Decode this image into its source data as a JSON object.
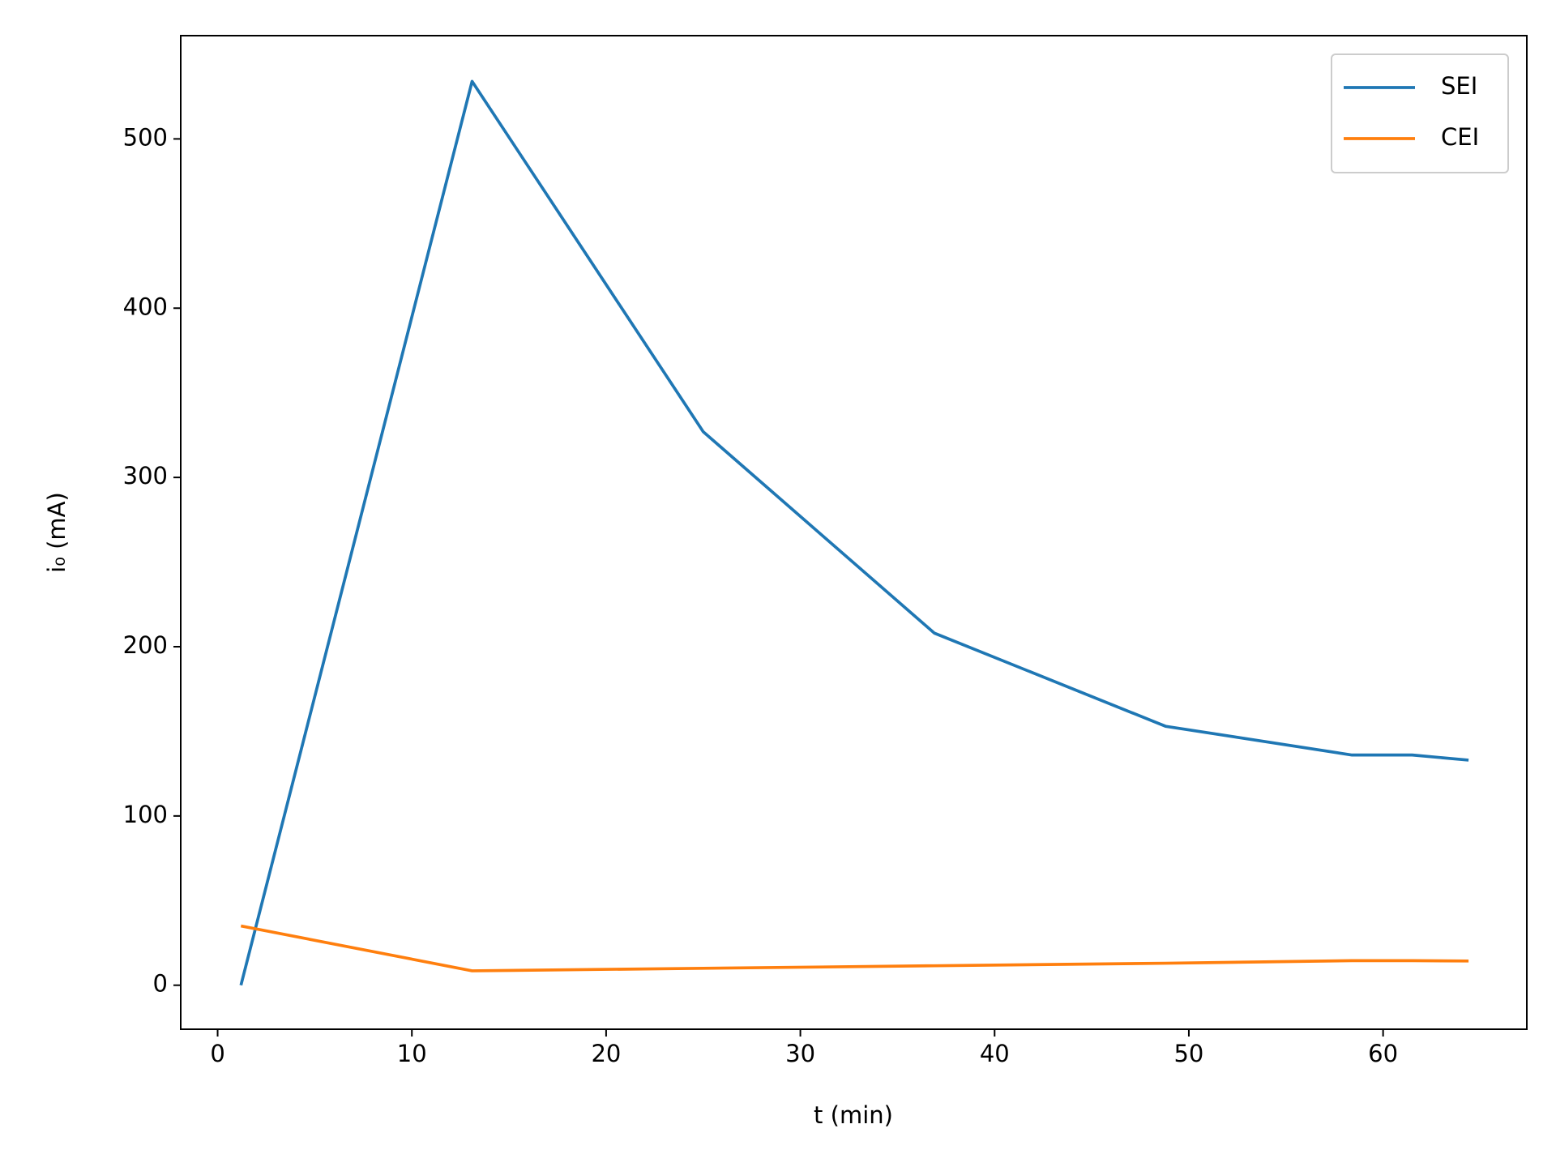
{
  "chart_data": {
    "type": "line",
    "x_label": "t (min)",
    "y_label": "i₀ (mA)",
    "x": [
      1.2,
      13.1,
      25.0,
      36.9,
      48.8,
      58.4,
      61.5,
      64.4
    ],
    "series": [
      {
        "name": "SEI",
        "color": "#1f77b4",
        "values": [
          0,
          534,
          327,
          208,
          153,
          136,
          136,
          133
        ]
      },
      {
        "name": "CEI",
        "color": "#ff7f0e",
        "values": [
          35,
          8.5,
          10,
          11.5,
          13,
          14.5,
          14.5,
          14.3
        ]
      }
    ],
    "xlim": [
      -1.9,
      67.4
    ],
    "ylim": [
      -26,
      561
    ],
    "xticks": [
      0,
      10,
      20,
      30,
      40,
      50,
      60
    ],
    "yticks": [
      0,
      100,
      200,
      300,
      400,
      500
    ],
    "legend": "upper right",
    "grid": false
  }
}
